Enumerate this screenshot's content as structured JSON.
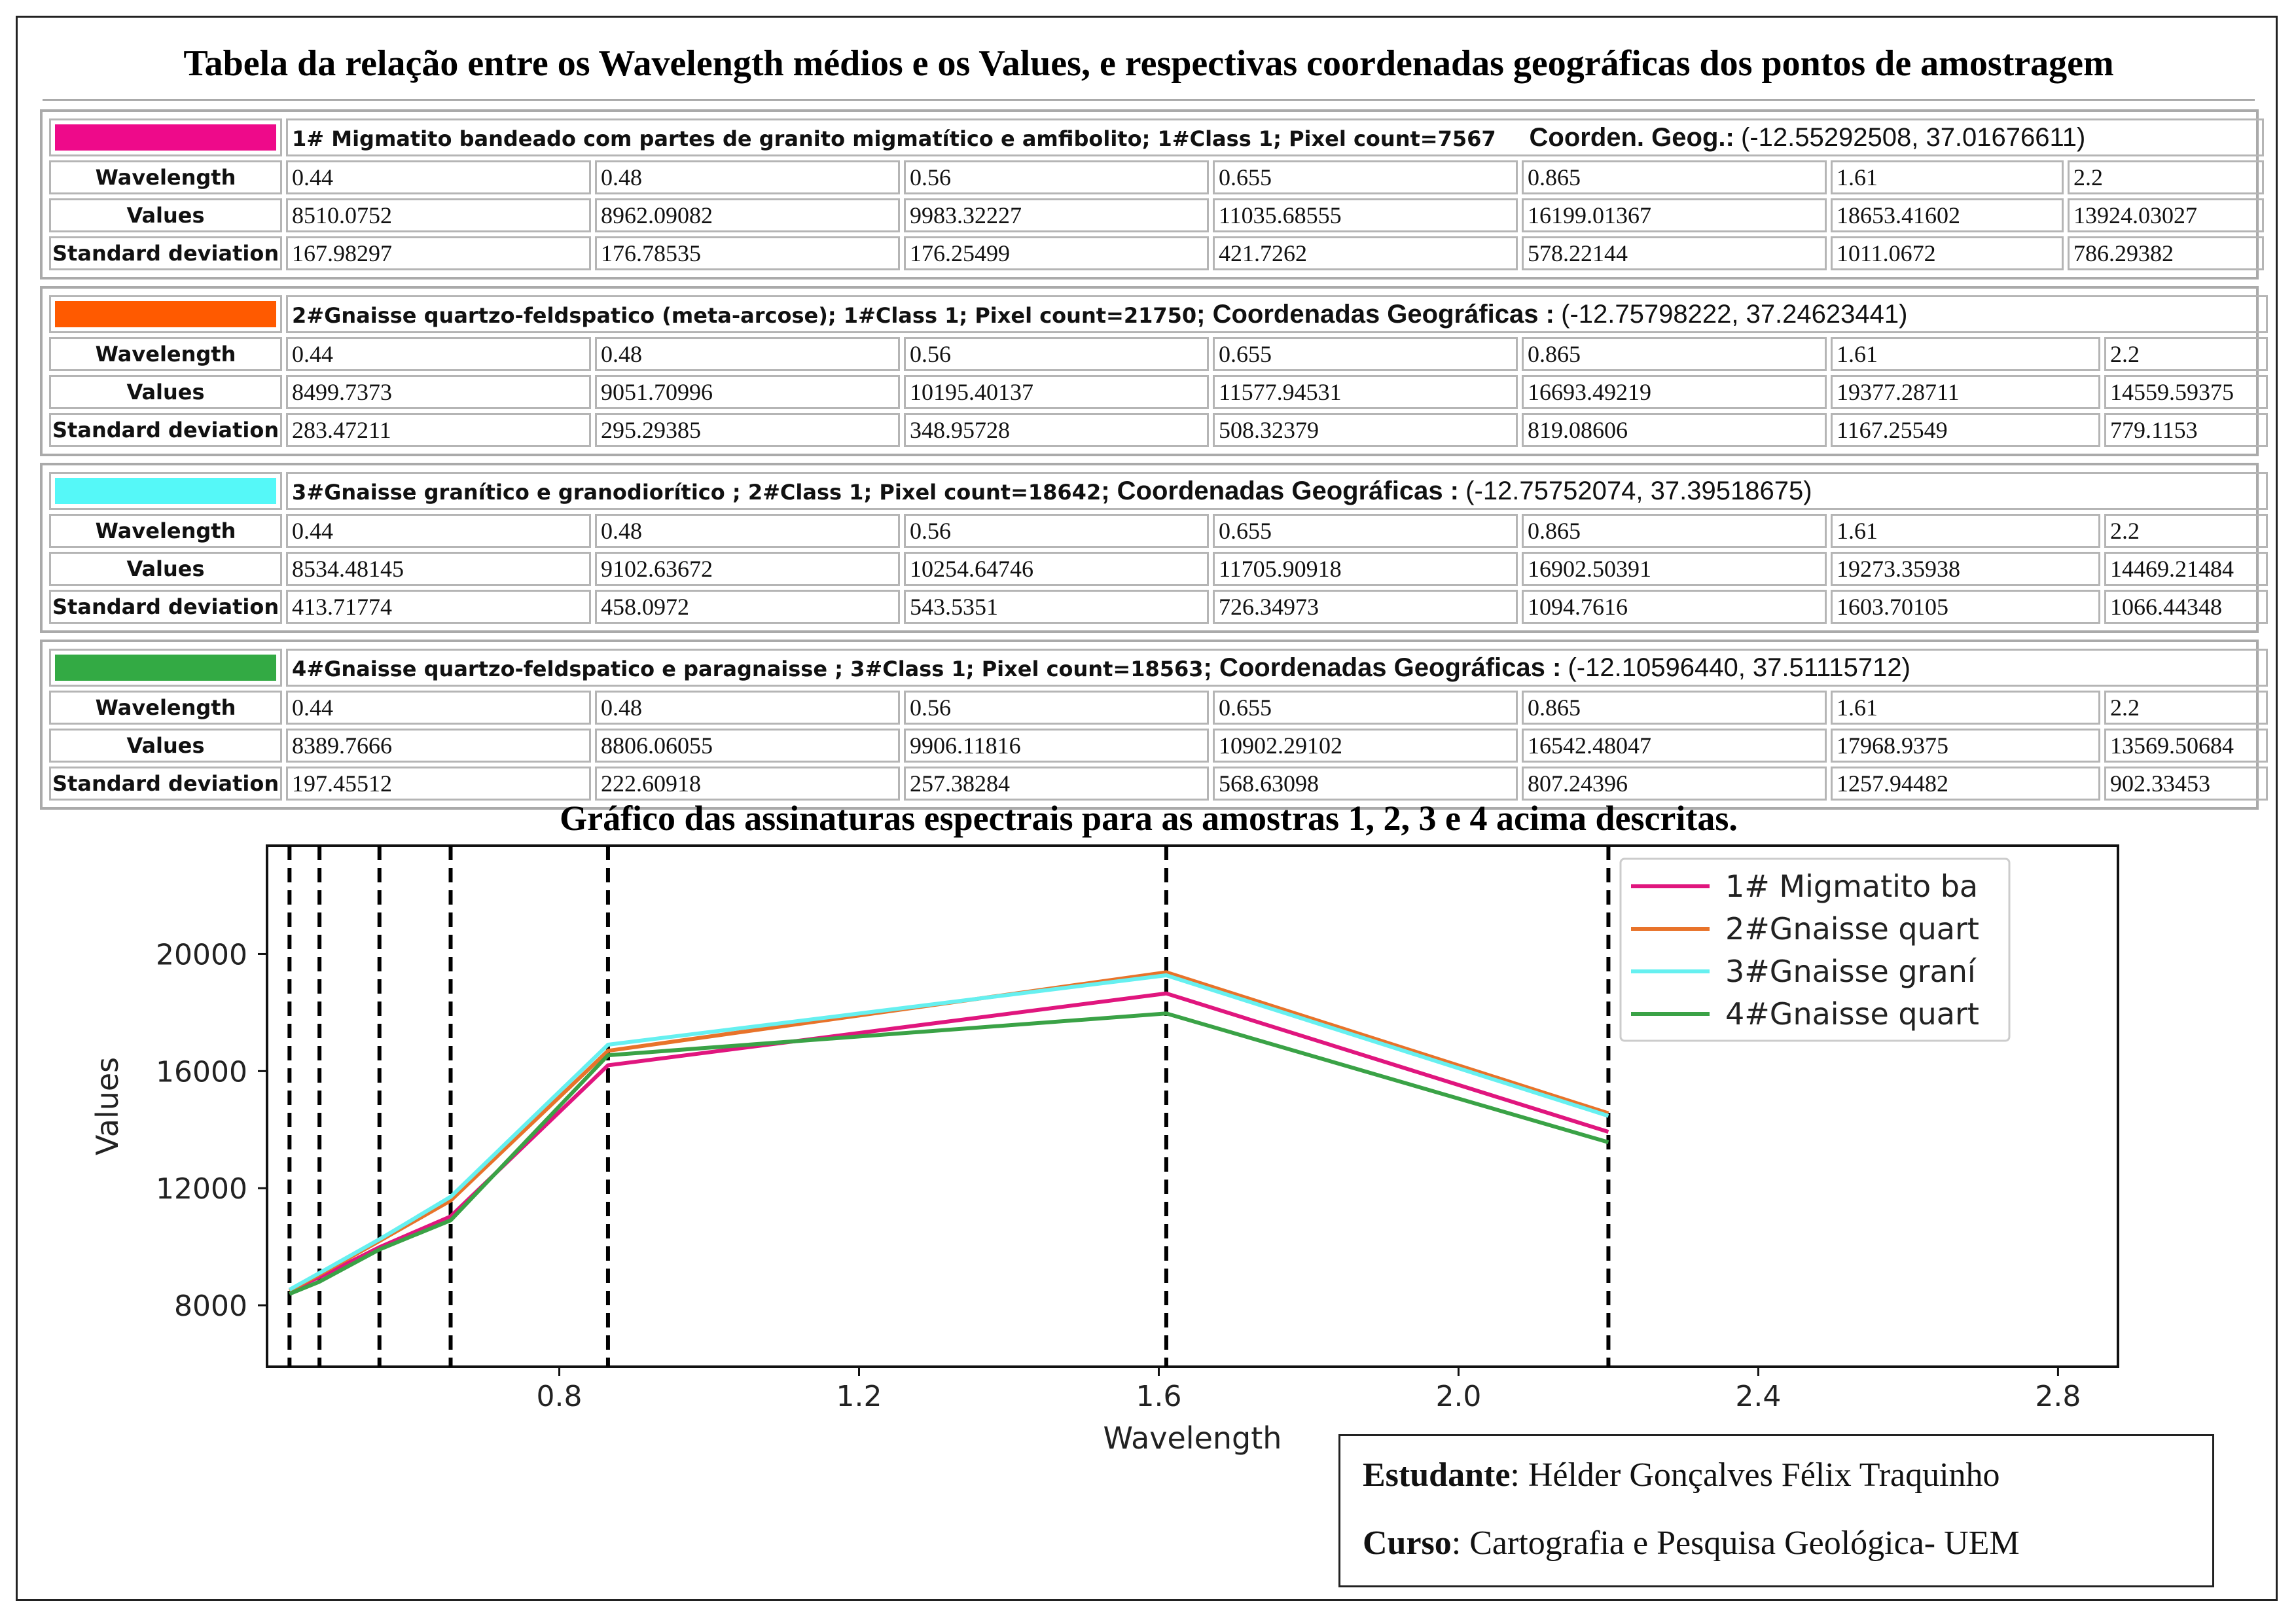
{
  "title": "Tabela da relação entre os Wavelength médios e os Values, e respectivas coordenadas geográficas dos pontos de amostragem",
  "row_labels": {
    "wavelength": "Wavelength",
    "values": "Values",
    "std": "Standard deviation"
  },
  "samples": [
    {
      "color": "#ee0a8a",
      "description": "1# Migmatito bandeado com partes de granito migmatítico e amfibolito; 1#Class 1; Pixel count=7567",
      "coord_label": "Coorden. Geog.:",
      "coord_value": "(-12.55292508, 37.01676611)",
      "wavelength": [
        "0.44",
        "0.48",
        "0.56",
        "0.655",
        "0.865",
        "1.61",
        "2.2"
      ],
      "values": [
        "8510.0752",
        "8962.09082",
        "9983.32227",
        "11035.68555",
        "16199.01367",
        "18653.41602",
        "13924.03027"
      ],
      "std": [
        "167.98297",
        "176.78535",
        "176.25499",
        "421.7262",
        "578.22144",
        "1011.0672",
        "786.29382"
      ]
    },
    {
      "color": "#ff5a00",
      "description": "2#Gnaisse quartzo-feldspatico (meta-arcose); 1#Class 1; Pixel count=21750",
      "coord_label": "; Coordenadas Geográficas :",
      "coord_value": "(-12.75798222, 37.24623441)",
      "wavelength": [
        "0.44",
        "0.48",
        "0.56",
        "0.655",
        "0.865",
        "1.61",
        "2.2"
      ],
      "values": [
        "8499.7373",
        "9051.70996",
        "10195.40137",
        "11577.94531",
        "16693.49219",
        "19377.28711",
        "14559.59375"
      ],
      "std": [
        "283.47211",
        "295.29385",
        "348.95728",
        "508.32379",
        "819.08606",
        "1167.25549",
        "779.1153"
      ]
    },
    {
      "color": "#55f8f8",
      "description": "3#Gnaisse granítico e granodiorítico ; 2#Class 1; Pixel count=18642",
      "coord_label": "; Coordenadas Geográficas :",
      "coord_value": "(-12.75752074, 37.39518675)",
      "wavelength": [
        "0.44",
        "0.48",
        "0.56",
        "0.655",
        "0.865",
        "1.61",
        "2.2"
      ],
      "values": [
        "8534.48145",
        "9102.63672",
        "10254.64746",
        "11705.90918",
        "16902.50391",
        "19273.35938",
        "14469.21484"
      ],
      "std": [
        "413.71774",
        "458.0972",
        "543.5351",
        "726.34973",
        "1094.7616",
        "1603.70105",
        "1066.44348"
      ]
    },
    {
      "color": "#33aa44",
      "description": "4#Gnaisse quartzo-feldspatico e paragnaisse ; 3#Class 1; Pixel count=18563",
      "coord_label": "; Coordenadas Geográficas :",
      "coord_value": "(-12.10596440, 37.51115712)",
      "wavelength": [
        "0.44",
        "0.48",
        "0.56",
        "0.655",
        "0.865",
        "1.61",
        "2.2"
      ],
      "values": [
        "8389.7666",
        "8806.06055",
        "9906.11816",
        "10902.29102",
        "16542.48047",
        "17968.9375",
        "13569.50684"
      ],
      "std": [
        "197.45512",
        "222.60918",
        "257.38284",
        "568.63098",
        "807.24396",
        "1257.94482",
        "902.33453"
      ]
    }
  ],
  "chart_title": "Gráfico das assinaturas espectrais para as amostras 1, 2, 3 e 4 acima descritas.",
  "chart_data": {
    "type": "line",
    "xlabel": "Wavelength",
    "ylabel": "Values",
    "xlim": [
      0.41,
      2.88
    ],
    "ylim": [
      5900,
      23700
    ],
    "xticks": [
      "0.8",
      "1.2",
      "1.6",
      "2.0",
      "2.4",
      "2.8"
    ],
    "yticks": [
      "8000",
      "12000",
      "16000",
      "20000"
    ],
    "vlines": [
      0.44,
      0.48,
      0.56,
      0.655,
      0.865,
      1.61,
      2.2
    ],
    "vline_style": "black dashed",
    "legend_position": "top-right",
    "x": [
      0.44,
      0.48,
      0.56,
      0.655,
      0.865,
      1.61,
      2.2
    ],
    "series": [
      {
        "name": "1# Migmatito ba",
        "color": "#e0167e",
        "values": [
          8510.0752,
          8962.09082,
          9983.32227,
          11035.68555,
          16199.01367,
          18653.41602,
          13924.03027
        ]
      },
      {
        "name": "2#Gnaisse quart",
        "color": "#e8732a",
        "values": [
          8499.7373,
          9051.70996,
          10195.40137,
          11577.94531,
          16693.49219,
          19377.28711,
          14559.59375
        ]
      },
      {
        "name": "3#Gnaisse graní",
        "color": "#66f0f0",
        "values": [
          8534.48145,
          9102.63672,
          10254.64746,
          11705.90918,
          16902.50391,
          19273.35938,
          14469.21484
        ]
      },
      {
        "name": "4#Gnaisse quart",
        "color": "#3aa246",
        "values": [
          8389.7666,
          8806.06055,
          9906.11816,
          10902.29102,
          16542.48047,
          17968.9375,
          13569.50684
        ]
      }
    ]
  },
  "student": {
    "student_label": "Estudante",
    "student_name": ": Hélder Gonçalves Félix Traquinho",
    "course_label": "Curso",
    "course_name": ": Cartografia e Pesquisa Geológica- UEM"
  }
}
